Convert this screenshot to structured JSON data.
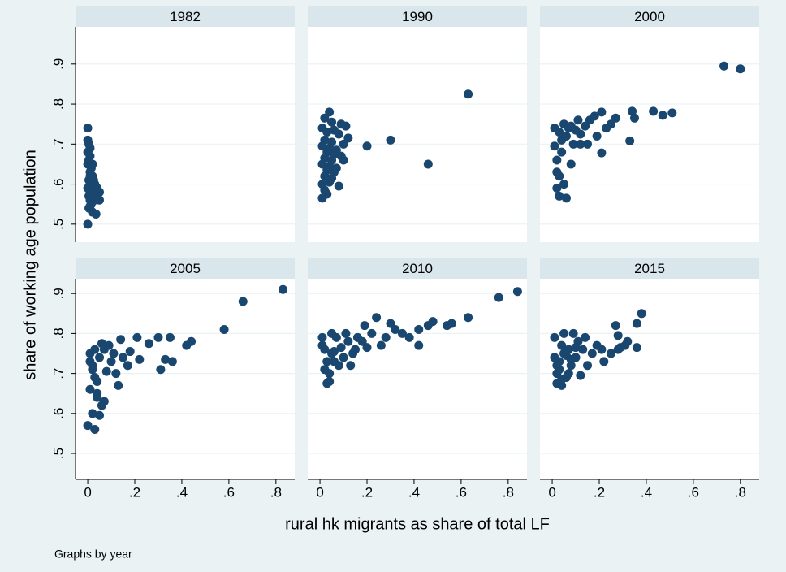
{
  "axes": {
    "xlabel": "rural hk migrants as share of total LF",
    "ylabel": "share of working age population"
  },
  "note": "Graphs by year",
  "chart_data": [
    {
      "type": "scatter",
      "title": "1982",
      "color": "#1a476f",
      "grid": true,
      "xlim": [
        -0.052,
        0.88
      ],
      "ylim": [
        0.455,
        0.993
      ],
      "yticks": [
        {
          "value": 0.5,
          "label": ".5"
        },
        {
          "value": 0.6,
          "label": ".6"
        },
        {
          "value": 0.7,
          "label": ".7"
        },
        {
          "value": 0.8,
          "label": ".8"
        },
        {
          "value": 0.9,
          "label": ".9"
        }
      ],
      "x": [
        0,
        0,
        0.005,
        0.01,
        0,
        0.01,
        0.005,
        0,
        0.015,
        0.01,
        0.02,
        0.005,
        0.025,
        0.01,
        0.03,
        0,
        0.02,
        0.04,
        0.01,
        0.03,
        0.05,
        0.005,
        0.02,
        0.04,
        0.01,
        0.03,
        0.05,
        0.015,
        0.005,
        0.02,
        0.035,
        0,
        0.01,
        0.02,
        0.01
      ],
      "y": [
        0.74,
        0.71,
        0.7,
        0.69,
        0.68,
        0.67,
        0.66,
        0.65,
        0.64,
        0.63,
        0.62,
        0.61,
        0.61,
        0.6,
        0.6,
        0.59,
        0.59,
        0.59,
        0.58,
        0.58,
        0.58,
        0.57,
        0.57,
        0.57,
        0.56,
        0.56,
        0.56,
        0.55,
        0.54,
        0.53,
        0.525,
        0.5,
        0.62,
        0.65,
        0.545
      ]
    },
    {
      "type": "scatter",
      "title": "1990",
      "color": "#1a476f",
      "grid": true,
      "xlim": [
        -0.052,
        0.88
      ],
      "ylim": [
        0.455,
        0.993
      ],
      "yticks": [
        0.5,
        0.6,
        0.7,
        0.8,
        0.9
      ],
      "x": [
        0.04,
        0.02,
        0.05,
        0.09,
        0.11,
        0.01,
        0.06,
        0.03,
        0.08,
        0.12,
        0.02,
        0.05,
        0.1,
        0.01,
        0.04,
        0.07,
        0.03,
        0.06,
        0.09,
        0.02,
        0.05,
        0.1,
        0.01,
        0.04,
        0.07,
        0.03,
        0.06,
        0.02,
        0.05,
        0.01,
        0.04,
        0.08,
        0.02,
        0.03,
        0.01,
        0.63,
        0.46,
        0.3,
        0.2
      ],
      "y": [
        0.78,
        0.765,
        0.755,
        0.75,
        0.745,
        0.74,
        0.735,
        0.73,
        0.725,
        0.715,
        0.71,
        0.705,
        0.7,
        0.695,
        0.69,
        0.685,
        0.68,
        0.675,
        0.67,
        0.665,
        0.66,
        0.66,
        0.65,
        0.645,
        0.64,
        0.635,
        0.63,
        0.62,
        0.615,
        0.6,
        0.605,
        0.595,
        0.585,
        0.575,
        0.565,
        0.825,
        0.65,
        0.71,
        0.695
      ]
    },
    {
      "type": "scatter",
      "title": "2000",
      "color": "#1a476f",
      "grid": true,
      "xlim": [
        -0.052,
        0.88
      ],
      "ylim": [
        0.455,
        0.993
      ],
      "yticks": [
        0.5,
        0.6,
        0.7,
        0.8,
        0.9
      ],
      "x": [
        0.73,
        0.8,
        0.51,
        0.47,
        0.43,
        0.34,
        0.35,
        0.33,
        0.27,
        0.21,
        0.21,
        0.25,
        0.23,
        0.19,
        0.18,
        0.16,
        0.15,
        0.14,
        0.12,
        0.11,
        0.1,
        0.09,
        0.08,
        0.07,
        0.06,
        0.05,
        0.04,
        0.03,
        0.02,
        0.01,
        0.02,
        0.04,
        0.06,
        0.03,
        0.01,
        0.05,
        0.02,
        0.03,
        0.08,
        0.12
      ],
      "y": [
        0.895,
        0.888,
        0.778,
        0.772,
        0.782,
        0.782,
        0.765,
        0.708,
        0.765,
        0.78,
        0.678,
        0.75,
        0.74,
        0.72,
        0.77,
        0.76,
        0.7,
        0.745,
        0.725,
        0.76,
        0.735,
        0.7,
        0.65,
        0.74,
        0.72,
        0.6,
        0.68,
        0.57,
        0.63,
        0.74,
        0.66,
        0.71,
        0.565,
        0.62,
        0.695,
        0.75,
        0.59,
        0.73,
        0.745,
        0.7
      ]
    },
    {
      "type": "scatter",
      "title": "2005",
      "color": "#1a476f",
      "grid": true,
      "xlim": [
        -0.052,
        0.88
      ],
      "ylim": [
        0.435,
        0.937
      ],
      "xticks": [
        0,
        {
          "value": 0.2,
          "label": ".2"
        },
        {
          "value": 0.4,
          "label": ".4"
        },
        {
          "value": 0.6,
          "label": ".6"
        },
        {
          "value": 0.8,
          "label": ".8"
        }
      ],
      "yticks": [
        {
          "value": 0.5,
          "label": ".5"
        },
        {
          "value": 0.6,
          "label": ".6"
        },
        {
          "value": 0.7,
          "label": ".7"
        },
        {
          "value": 0.8,
          "label": ".8"
        },
        {
          "value": 0.9,
          "label": ".9"
        }
      ],
      "x": [
        0.83,
        0.66,
        0.58,
        0.44,
        0.42,
        0.36,
        0.33,
        0.31,
        0.35,
        0.3,
        0.26,
        0.21,
        0.22,
        0.18,
        0.17,
        0.13,
        0.14,
        0.11,
        0.1,
        0.09,
        0.08,
        0.07,
        0.06,
        0.05,
        0.04,
        0.03,
        0.02,
        0.01,
        0,
        0.02,
        0.04,
        0.06,
        0.03,
        0.01,
        0.05,
        0.02,
        0.03,
        0.07,
        0.12,
        0.15,
        0.01,
        0.04
      ],
      "y": [
        0.91,
        0.88,
        0.81,
        0.78,
        0.77,
        0.73,
        0.735,
        0.71,
        0.79,
        0.79,
        0.775,
        0.79,
        0.735,
        0.755,
        0.72,
        0.67,
        0.785,
        0.75,
        0.73,
        0.77,
        0.705,
        0.76,
        0.62,
        0.74,
        0.68,
        0.56,
        0.71,
        0.75,
        0.57,
        0.6,
        0.64,
        0.775,
        0.69,
        0.66,
        0.595,
        0.72,
        0.76,
        0.63,
        0.7,
        0.74,
        0.73,
        0.65
      ]
    },
    {
      "type": "scatter",
      "title": "2010",
      "color": "#1a476f",
      "grid": true,
      "xlim": [
        -0.052,
        0.88
      ],
      "ylim": [
        0.435,
        0.937
      ],
      "xticks": [
        0,
        {
          "value": 0.2,
          "label": ".2"
        },
        {
          "value": 0.4,
          "label": ".4"
        },
        {
          "value": 0.6,
          "label": ".6"
        },
        {
          "value": 0.8,
          "label": ".8"
        }
      ],
      "yticks": [
        0.5,
        0.6,
        0.7,
        0.8,
        0.9
      ],
      "x": [
        0.84,
        0.76,
        0.63,
        0.56,
        0.54,
        0.48,
        0.46,
        0.42,
        0.42,
        0.38,
        0.35,
        0.32,
        0.3,
        0.28,
        0.26,
        0.24,
        0.22,
        0.19,
        0.18,
        0.16,
        0.15,
        0.14,
        0.12,
        0.11,
        0.1,
        0.09,
        0.08,
        0.07,
        0.06,
        0.05,
        0.04,
        0.03,
        0.02,
        0.01,
        0.02,
        0.04,
        0.06,
        0.03,
        0.01,
        0.05,
        0.13,
        0.2
      ],
      "y": [
        0.905,
        0.89,
        0.84,
        0.825,
        0.82,
        0.83,
        0.82,
        0.81,
        0.77,
        0.79,
        0.8,
        0.81,
        0.825,
        0.79,
        0.77,
        0.84,
        0.8,
        0.82,
        0.78,
        0.79,
        0.76,
        0.75,
        0.78,
        0.8,
        0.74,
        0.765,
        0.72,
        0.79,
        0.73,
        0.8,
        0.7,
        0.675,
        0.76,
        0.79,
        0.71,
        0.68,
        0.755,
        0.73,
        0.77,
        0.75,
        0.72,
        0.765
      ]
    },
    {
      "type": "scatter",
      "title": "2015",
      "color": "#1a476f",
      "grid": true,
      "xlim": [
        -0.052,
        0.88
      ],
      "ylim": [
        0.435,
        0.937
      ],
      "xticks": [
        0,
        {
          "value": 0.2,
          "label": ".2"
        },
        {
          "value": 0.4,
          "label": ".4"
        },
        {
          "value": 0.6,
          "label": ".6"
        },
        {
          "value": 0.8,
          "label": ".8"
        }
      ],
      "yticks": [
        0.5,
        0.6,
        0.7,
        0.8,
        0.9
      ],
      "x": [
        0.38,
        0.36,
        0.36,
        0.32,
        0.31,
        0.29,
        0.28,
        0.27,
        0.28,
        0.25,
        0.22,
        0.21,
        0.19,
        0.17,
        0.14,
        0.15,
        0.13,
        0.12,
        0.11,
        0.1,
        0.09,
        0.08,
        0.07,
        0.06,
        0.05,
        0.04,
        0.03,
        0.02,
        0.01,
        0.02,
        0.04,
        0.06,
        0.03,
        0.05,
        0.08,
        0.1,
        0.02,
        0.04,
        0.07,
        0.01
      ],
      "y": [
        0.85,
        0.825,
        0.765,
        0.78,
        0.77,
        0.765,
        0.795,
        0.82,
        0.76,
        0.75,
        0.73,
        0.76,
        0.77,
        0.75,
        0.79,
        0.72,
        0.76,
        0.695,
        0.78,
        0.74,
        0.8,
        0.72,
        0.76,
        0.69,
        0.75,
        0.77,
        0.73,
        0.7,
        0.79,
        0.675,
        0.685,
        0.745,
        0.71,
        0.8,
        0.735,
        0.765,
        0.72,
        0.67,
        0.7,
        0.74
      ]
    }
  ]
}
